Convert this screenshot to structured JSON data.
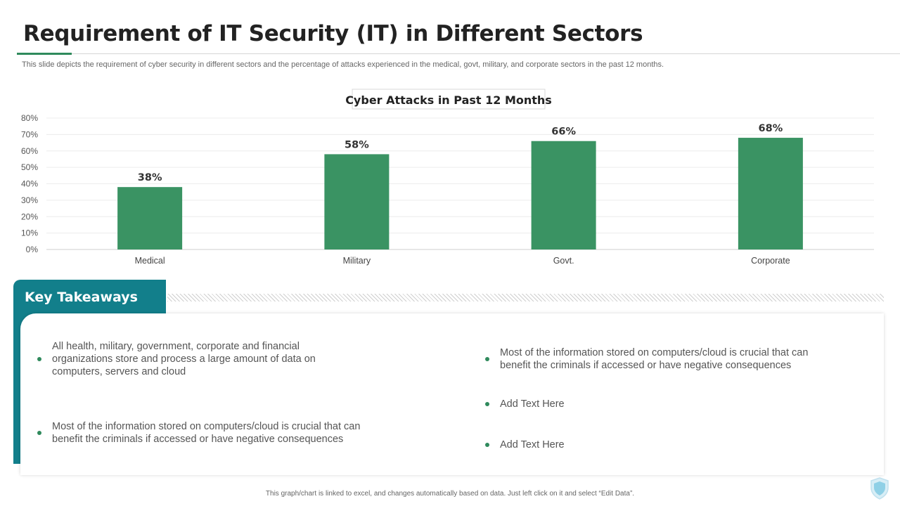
{
  "slide": {
    "title": "Requirement of IT Security (IT) in Different Sectors",
    "subtitle": "This slide depicts the requirement of cyber security in different sectors and the percentage of attacks experienced in the medical, govt, military, and corporate sectors in the past 12 months.",
    "footer": "This graph/chart is linked to excel, and changes automatically based on data. Just left click on it and select “Edit Data”."
  },
  "chart_data": {
    "type": "bar",
    "title": "Cyber Attacks in Past 12 Months",
    "categories": [
      "Medical",
      "Military",
      "Govt.",
      "Corporate"
    ],
    "values": [
      38,
      58,
      66,
      68
    ],
    "value_labels": [
      "38%",
      "58%",
      "66%",
      "68%"
    ],
    "ylim": [
      0,
      80
    ],
    "yticks": [
      0,
      10,
      20,
      30,
      40,
      50,
      60,
      70,
      80
    ],
    "ytick_labels": [
      "0%",
      "10%",
      "20%",
      "30%",
      "40%",
      "50%",
      "60%",
      "70%",
      "80%"
    ],
    "xlabel": "",
    "ylabel": "",
    "grid": true,
    "bar_color": "#3a9363"
  },
  "takeaways": {
    "heading": "Key Takeaways",
    "left": [
      "All health, military, government, corporate and financial organizations store and process a large amount of data on computers, servers and cloud",
      "Most of the information stored on computers/cloud is crucial that can benefit the criminals if accessed or have negative consequences"
    ],
    "right": [
      "Most of the information stored on computers/cloud is crucial that can benefit the criminals if accessed or have negative consequences",
      "Add Text Here",
      "Add Text Here"
    ]
  },
  "colors": {
    "accent_green": "#2f8a5c",
    "bar_green": "#3a9363",
    "teal": "#127f8b"
  },
  "icons": [
    "shield-icon"
  ]
}
